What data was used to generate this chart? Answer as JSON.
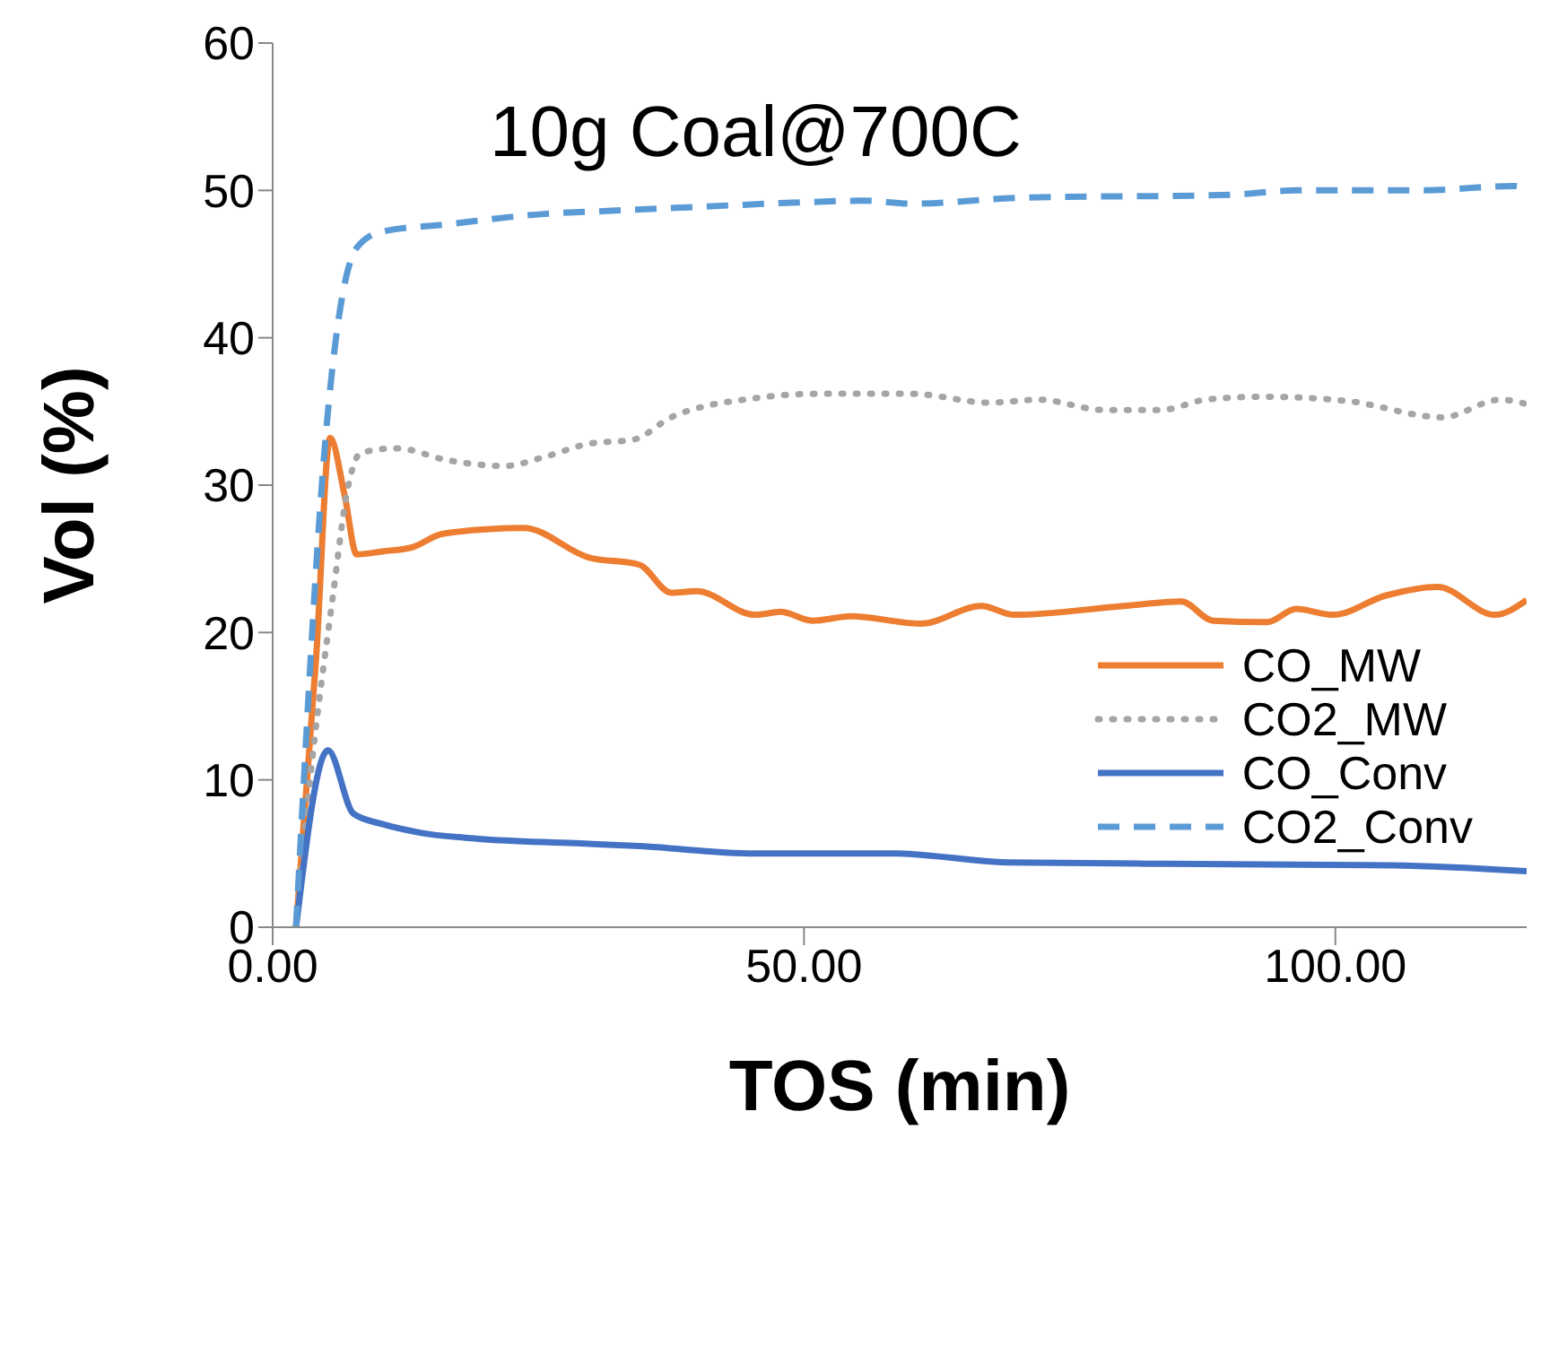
{
  "chart_data": {
    "type": "line",
    "title": "10g Coal@700C",
    "xlabel": "TOS (min)",
    "ylabel": "Vol (%)",
    "xlim": [
      0,
      118
    ],
    "xticks": [
      {
        "value": 0,
        "label": "0.00"
      },
      {
        "value": 50,
        "label": "50.00"
      },
      {
        "value": 100,
        "label": "100.00"
      }
    ],
    "ylim": [
      0,
      60
    ],
    "yticks": [
      0,
      10,
      20,
      30,
      40,
      50,
      60
    ],
    "grid": false,
    "legend": "right",
    "marker": "none",
    "series": [
      {
        "name": "CO_MW",
        "color": "#ed7d31",
        "line_style": "solid",
        "x": [
          2.2,
          4.1,
          5.4,
          6.8,
          7.9,
          10.3,
          13.2,
          16.0,
          23.6,
          29.7,
          34.5,
          37.5,
          39.9,
          45.4,
          47.8,
          50.8,
          54.4,
          61.0,
          66.7,
          69.8,
          80.1,
          85.5,
          88.5,
          93.6,
          96.3,
          99.8,
          104.7,
          109.6,
          115.0,
          118
        ],
        "values": [
          0,
          18.4,
          33.2,
          29.2,
          25.3,
          25.5,
          25.8,
          26.7,
          27.1,
          25.1,
          24.6,
          22.7,
          22.8,
          21.2,
          21.4,
          20.8,
          21.1,
          20.6,
          21.8,
          21.2,
          21.8,
          22.1,
          20.8,
          20.7,
          21.6,
          21.2,
          22.5,
          23.1,
          21.2,
          22.2
        ]
      },
      {
        "name": "CO2_MW",
        "color": "#a5a5a5",
        "line_style": "dotted",
        "x": [
          2.2,
          3.7,
          5.6,
          7.1,
          8.3,
          11.7,
          16.4,
          21.8,
          25.5,
          29.7,
          34.0,
          37.5,
          45.4,
          51.4,
          60.1,
          67.4,
          72.1,
          78.2,
          83.6,
          87.8,
          93.2,
          101.2,
          110.1,
          115.5,
          118
        ],
        "values": [
          0,
          11.2,
          22.1,
          29.9,
          32.2,
          32.5,
          31.7,
          31.3,
          31.9,
          32.8,
          33.1,
          34.6,
          35.9,
          36.2,
          36.2,
          35.6,
          35.8,
          35.1,
          35.1,
          35.8,
          36.0,
          35.7,
          34.6,
          35.8,
          35.5
        ]
      },
      {
        "name": "CO_Conv",
        "color": "#4472c4",
        "line_style": "solid",
        "x": [
          2.2,
          5.2,
          7.6,
          10.3,
          14.0,
          19.4,
          28.5,
          34.5,
          45.4,
          58.6,
          69.1,
          84.3,
          105.4,
          118
        ],
        "values": [
          0,
          12.0,
          7.7,
          7.0,
          6.4,
          6.0,
          5.7,
          5.5,
          5.0,
          5.0,
          4.4,
          4.3,
          4.2,
          3.8
        ]
      },
      {
        "name": "CO2_Conv",
        "color": "#5b9bd5",
        "line_style": "dashed",
        "x": [
          2.2,
          5.1,
          7.9,
          10.3,
          16.4,
          25.5,
          31.4,
          40.5,
          50.2,
          55.6,
          60.1,
          70.3,
          90.2,
          96.3,
          108.3,
          116.7,
          118
        ],
        "values": [
          0,
          34.2,
          46.1,
          47.2,
          47.7,
          48.4,
          48.6,
          48.9,
          49.2,
          49.3,
          49.1,
          49.5,
          49.7,
          50.0,
          50.0,
          50.3,
          50.2
        ]
      }
    ]
  }
}
